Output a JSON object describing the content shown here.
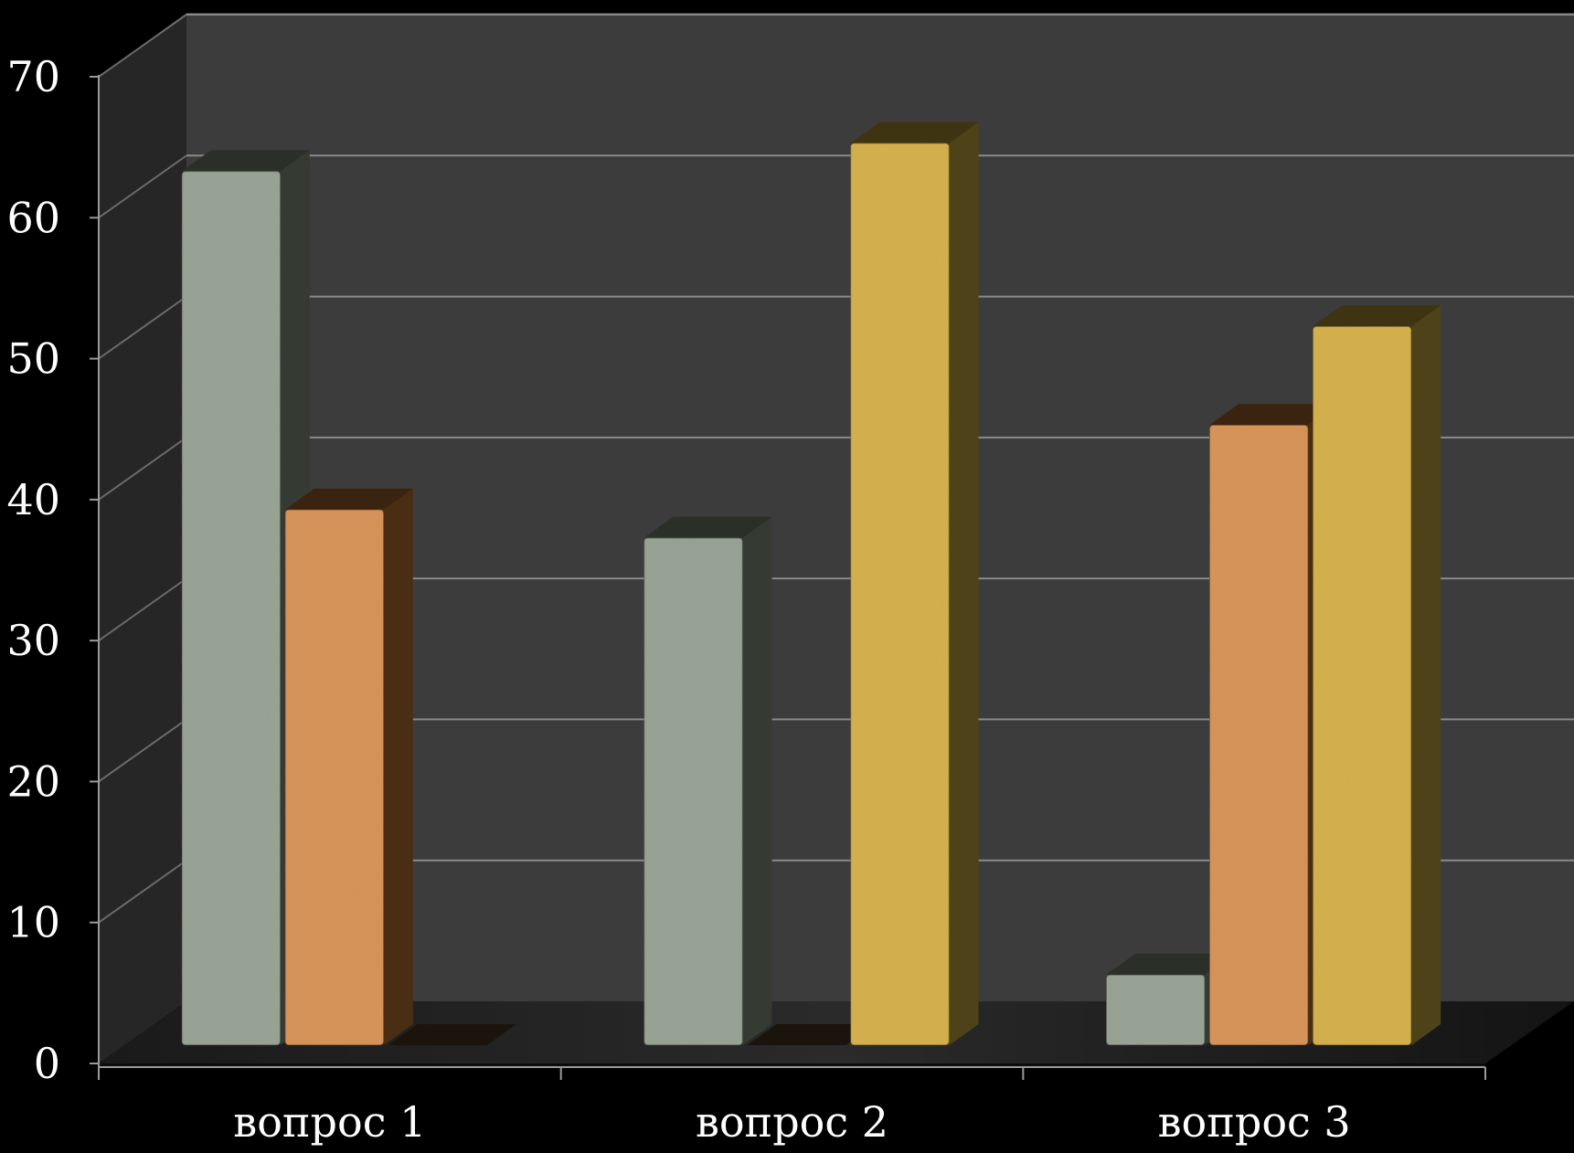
{
  "chart_data": {
    "type": "bar",
    "categories": [
      "вопрос 1",
      "вопрос 2",
      "вопрос 3"
    ],
    "series": [
      {
        "values": [
          62,
          36,
          5
        ],
        "color": "#9aa596",
        "side_color": "#353a32",
        "top_color": "#2a3028"
      },
      {
        "values": [
          38,
          0,
          44
        ],
        "color": "#d9955a",
        "side_color": "#4a2e14",
        "top_color": "#3a2410"
      },
      {
        "values": [
          0,
          64,
          51
        ],
        "color": "#d6b24e",
        "side_color": "#4e4318",
        "top_color": "#3e3412"
      }
    ],
    "yticks": [
      0,
      10,
      20,
      30,
      40,
      50,
      60,
      70
    ],
    "ylim": [
      0,
      70
    ],
    "grid": true,
    "style": "3d-column",
    "background_color": "#000000",
    "wall_color": "#3c3c3c"
  }
}
